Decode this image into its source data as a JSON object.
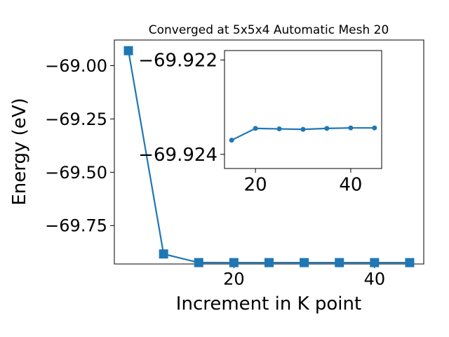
{
  "chart_data": [
    {
      "type": "line",
      "title": "Converged at 5x5x4 Automatic Mesh 20",
      "xlabel": "Increment in K point",
      "ylabel": "Energy (eV)",
      "marker": "square",
      "color": "#1f77b4",
      "x": [
        5,
        10,
        15,
        20,
        25,
        30,
        35,
        40,
        45
      ],
      "y": [
        -68.93,
        -69.883,
        -69.9235,
        -69.9236,
        -69.9236,
        -69.9236,
        -69.9236,
        -69.9236,
        -69.9236
      ],
      "xlim": [
        3.0,
        47.0
      ],
      "ylim": [
        -69.93,
        -68.88
      ],
      "xticks": [
        20,
        40
      ],
      "yticks": [
        -69.0,
        -69.25,
        -69.5,
        -69.75
      ],
      "yticklabels": [
        "−69.00",
        "−69.25",
        "−69.50",
        "−69.75"
      ],
      "xticklabels": [
        "20",
        "40"
      ],
      "grid": false
    },
    {
      "type": "line",
      "title": "",
      "xlabel": "",
      "ylabel": "",
      "marker": "circle",
      "color": "#1f77b4",
      "x": [
        15,
        20,
        25,
        30,
        35,
        40,
        45
      ],
      "y": [
        -69.9237,
        -69.92345,
        -69.92346,
        -69.92347,
        -69.92345,
        -69.92344,
        -69.92344
      ],
      "xlim": [
        13.5,
        46.5
      ],
      "ylim": [
        -69.9243,
        -69.9218
      ],
      "xticks": [
        20,
        40
      ],
      "yticks": [
        -69.924,
        -69.922
      ],
      "yticklabels": [
        "−69.924",
        "−69.922"
      ],
      "xticklabels": [
        "20",
        "40"
      ],
      "grid": false
    }
  ]
}
